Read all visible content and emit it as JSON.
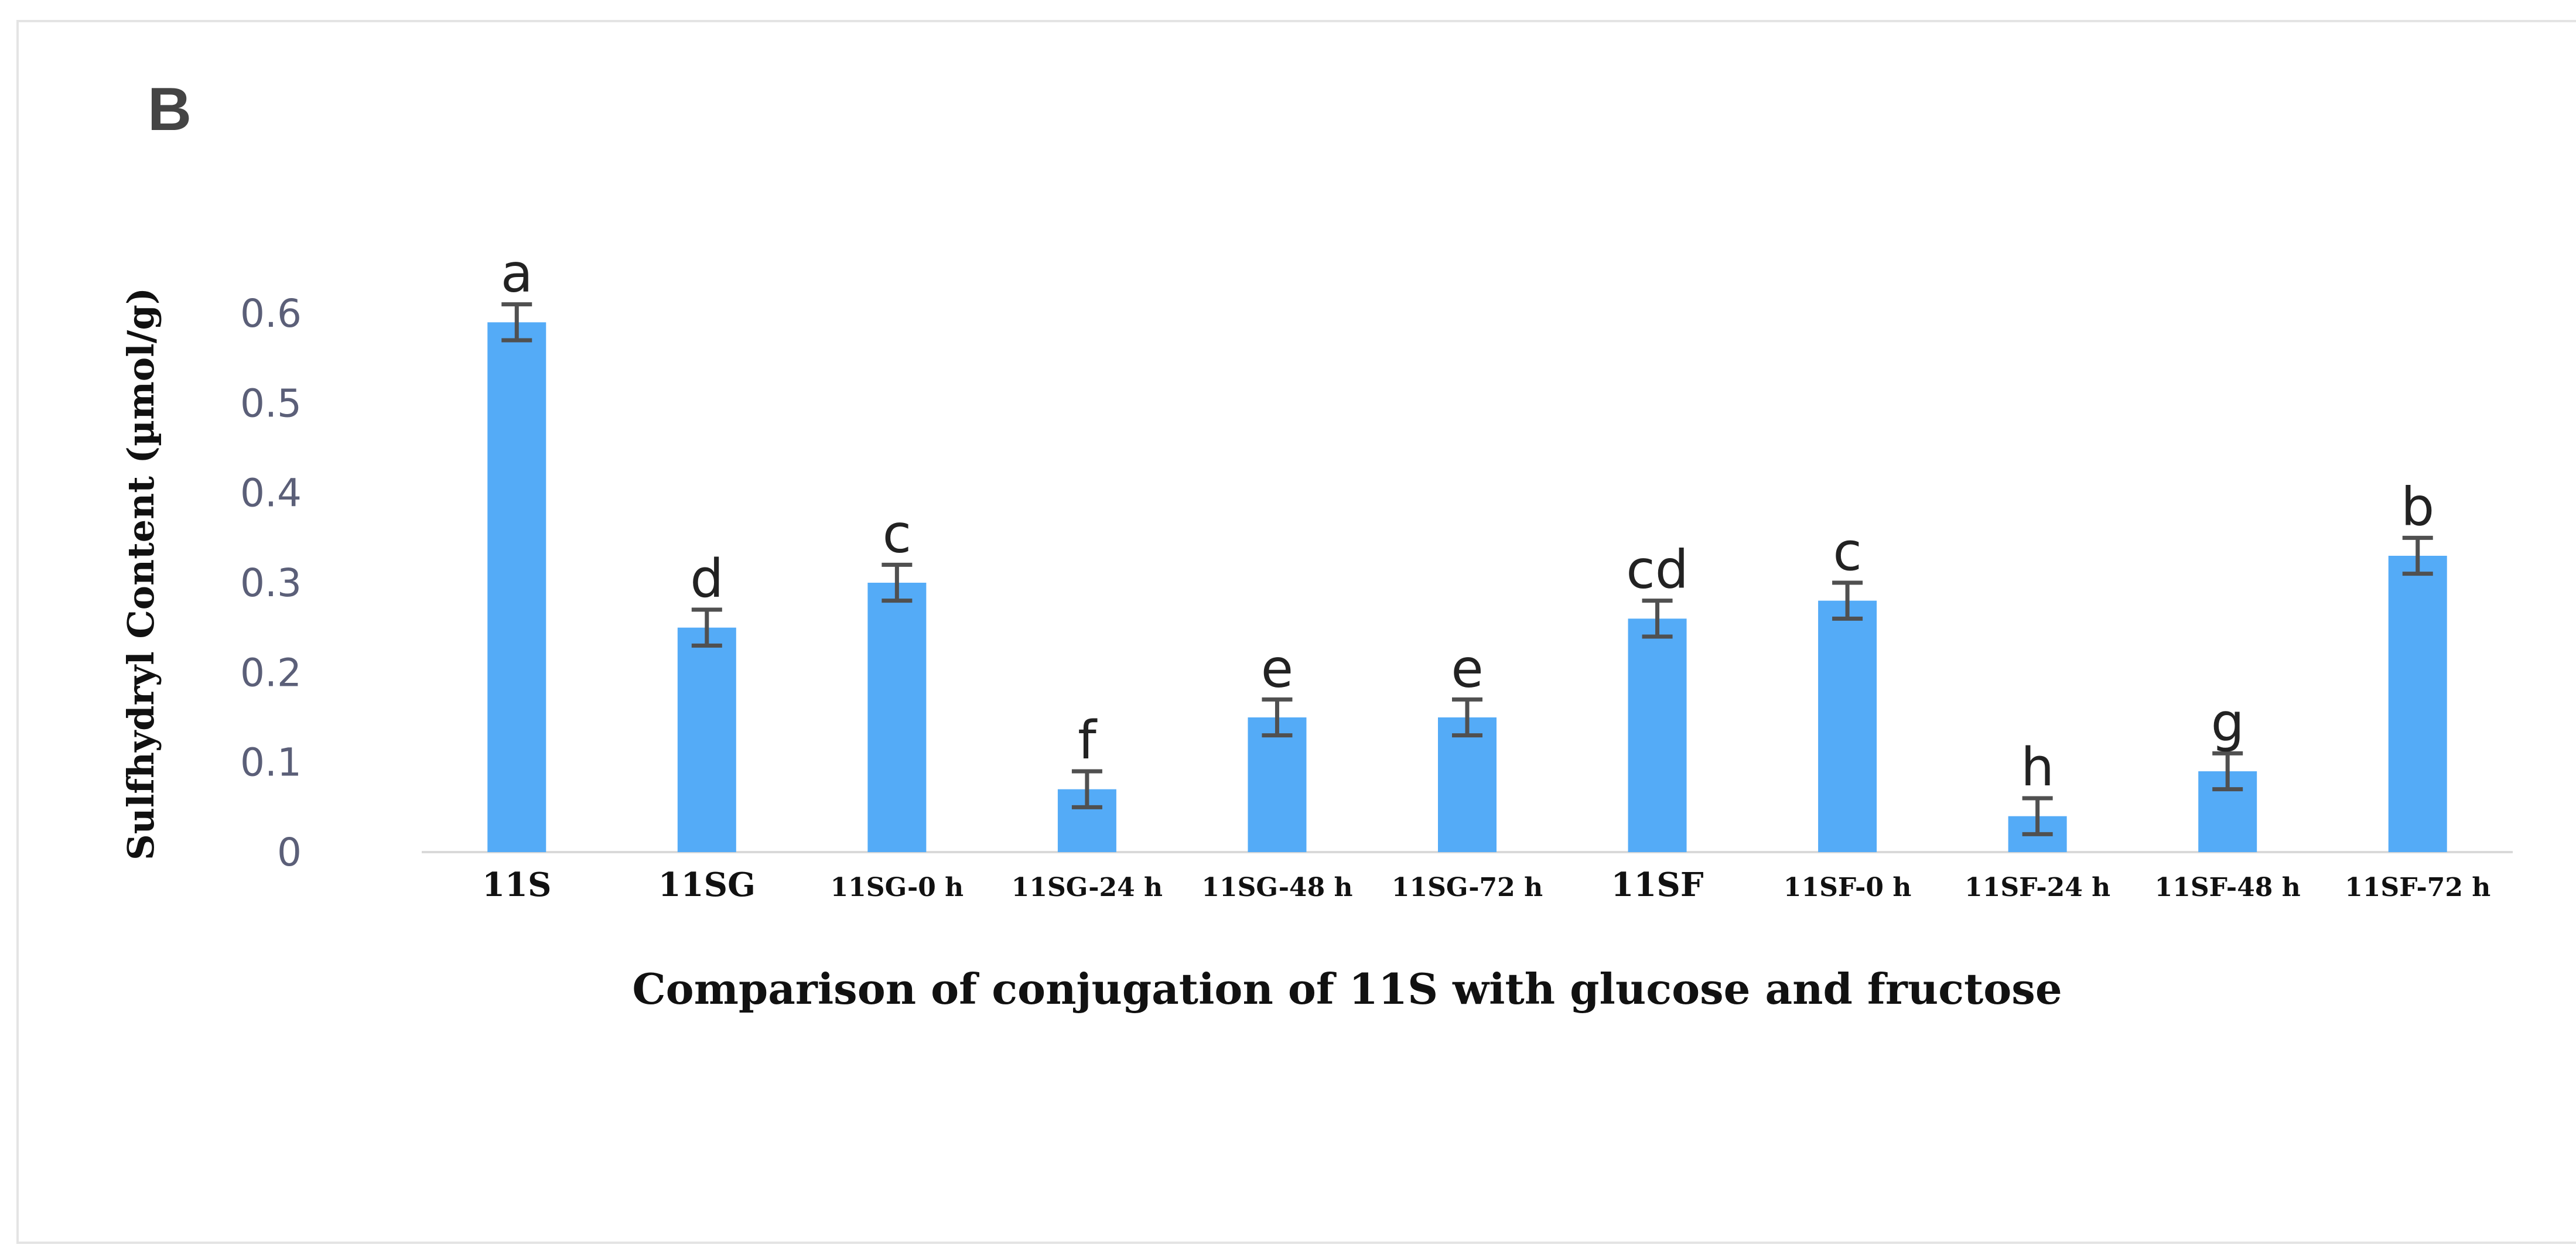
{
  "panel_label": "B",
  "colors": {
    "bar": "#54abf7",
    "error_bar": "#505050",
    "axis": "#d9d9d9"
  },
  "chart_data": {
    "type": "bar",
    "xlabel": "Comparison of conjugation of 11S with glucose and fructose",
    "ylabel": "Sulfhydryl Content (µmol/g)",
    "ylim": [
      0,
      0.6
    ],
    "yticks": [
      "0",
      "0.1",
      "0.2",
      "0.3",
      "0.4",
      "0.5",
      "0.6"
    ],
    "grid": false,
    "legend": "none",
    "categories": [
      "11S",
      "11SG",
      "11SG-0 h",
      "11SG-24 h",
      "11SG-48 h",
      "11SG-72 h",
      "11SF",
      "11SF-0 h",
      "11SF-24 h",
      "11SF-48 h",
      "11SF-72 h"
    ],
    "values": [
      0.59,
      0.25,
      0.3,
      0.07,
      0.15,
      0.15,
      0.26,
      0.28,
      0.04,
      0.09,
      0.33
    ],
    "errors": [
      0.02,
      0.02,
      0.02,
      0.02,
      0.02,
      0.02,
      0.02,
      0.02,
      0.02,
      0.02,
      0.02
    ],
    "significance_letters": [
      "a",
      "d",
      "c",
      "f",
      "e",
      "e",
      "cd",
      "c",
      "h",
      "g",
      "b"
    ]
  }
}
